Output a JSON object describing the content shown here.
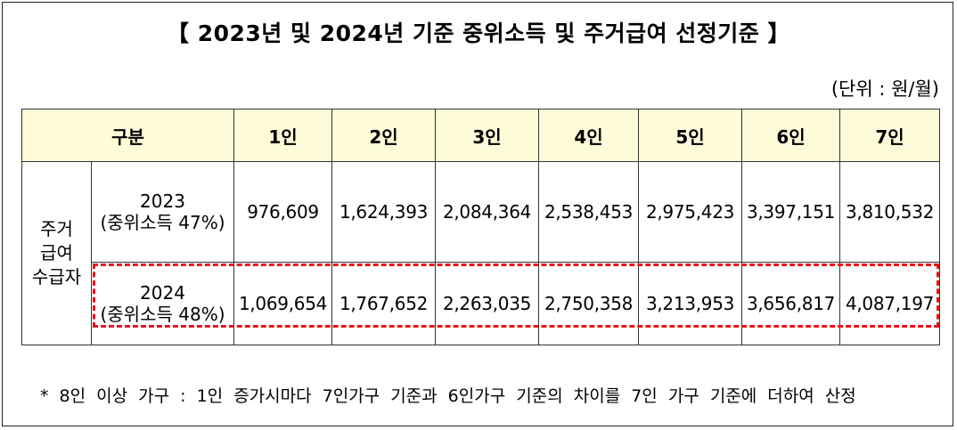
{
  "title": "【 2023년 및 2024년 기준 중위소득 및 주거급여 선정기준 】",
  "unit": "(단위 : 원/월)",
  "table": {
    "corner_header": "구분",
    "columns": [
      "1인",
      "2인",
      "3인",
      "4인",
      "5인",
      "6인",
      "7인"
    ],
    "group_label": [
      "주거",
      "급여",
      "수급자"
    ],
    "rows": [
      {
        "year": "2023",
        "note": "(중위소득 47%)",
        "values": [
          "976,609",
          "1,624,393",
          "2,084,364",
          "2,538,453",
          "2,975,423",
          "3,397,151",
          "3,810,532"
        ]
      },
      {
        "year": "2024",
        "note": "(중위소득 48%)",
        "values": [
          "1,069,654",
          "1,767,652",
          "2,263,035",
          "2,750,358",
          "3,213,953",
          "3,656,817",
          "4,087,197"
        ]
      }
    ]
  },
  "footnote": "* 8인 이상 가구 : 1인 증가시마다 7인가구 기준과 6인가구 기준의 차이를 7인 가구 기준에 더하여 산정",
  "colors": {
    "header_bg": "#fefbd9",
    "highlight": "#e8141c"
  }
}
